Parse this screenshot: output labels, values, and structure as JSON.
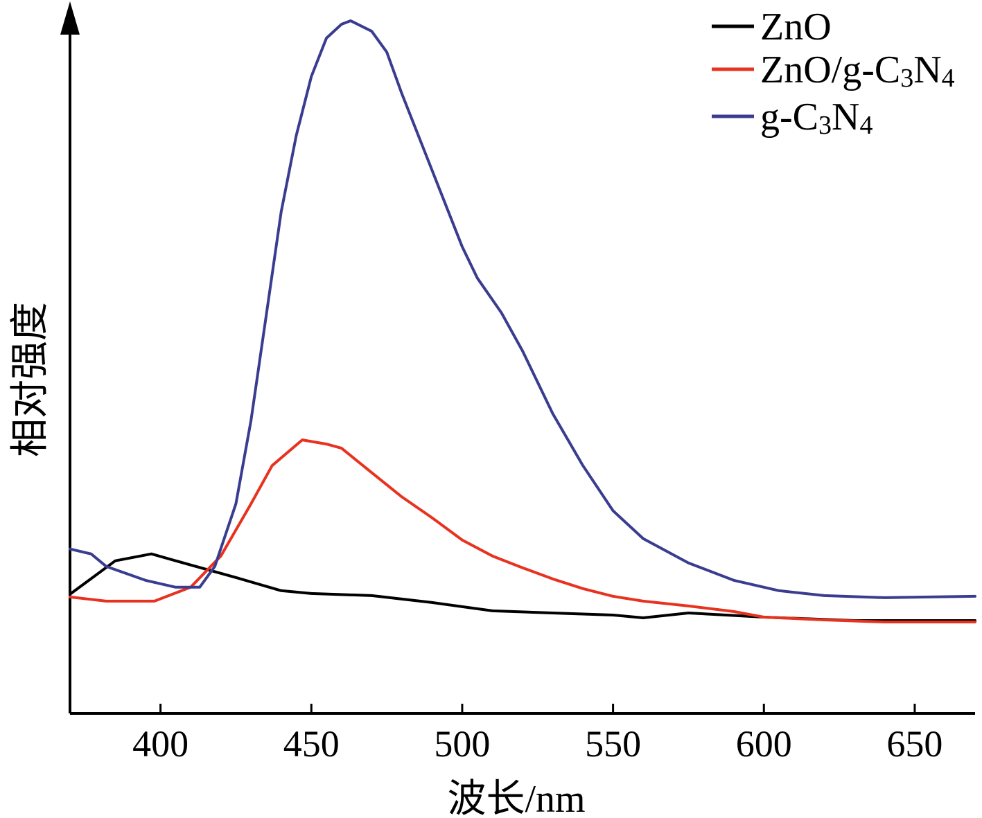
{
  "chart_data": {
    "type": "line",
    "xlabel": "波长/nm",
    "ylabel": "相对强度",
    "xlim": [
      370,
      670
    ],
    "ylim": [
      0,
      100
    ],
    "xticks": [
      400,
      450,
      500,
      550,
      600,
      650
    ],
    "grid": false,
    "legend_position": "top-right",
    "series": [
      {
        "name": "ZnO",
        "color": "#000000",
        "legend_parts": [
          {
            "t": "ZnO"
          }
        ],
        "x": [
          370,
          385,
          397,
          410,
          425,
          440,
          450,
          470,
          490,
          510,
          530,
          550,
          560,
          575,
          600,
          630,
          670
        ],
        "y": [
          17.0,
          21.8,
          22.8,
          21.2,
          19.4,
          17.5,
          17.1,
          16.8,
          15.8,
          14.6,
          14.3,
          14.0,
          13.6,
          14.3,
          13.7,
          13.2,
          13.2
        ]
      },
      {
        "name": "ZnO/g-C3N4",
        "color": "#e8321f",
        "legend_parts": [
          {
            "t": "ZnO/g-C"
          },
          {
            "t": "3",
            "sub": true
          },
          {
            "t": "N"
          },
          {
            "t": "4",
            "sub": true
          }
        ],
        "x": [
          370,
          382,
          398,
          410,
          420,
          430,
          437,
          447,
          455,
          460,
          470,
          480,
          490,
          500,
          510,
          520,
          530,
          540,
          550,
          560,
          575,
          590,
          600,
          620,
          640,
          670
        ],
        "y": [
          16.6,
          16.0,
          16.0,
          18.0,
          22.5,
          30.0,
          35.5,
          39.2,
          38.6,
          38.0,
          34.5,
          31.0,
          28.0,
          24.8,
          22.5,
          20.8,
          19.2,
          17.8,
          16.7,
          16.0,
          15.3,
          14.5,
          13.7,
          13.3,
          13.0,
          13.0
        ]
      },
      {
        "name": "g-C3N4",
        "color": "#3a3d8f",
        "legend_parts": [
          {
            "t": "g-C"
          },
          {
            "t": "3",
            "sub": true
          },
          {
            "t": "N"
          },
          {
            "t": "4",
            "sub": true
          }
        ],
        "x": [
          370,
          377,
          382,
          395,
          405,
          413,
          418,
          425,
          430,
          435,
          440,
          445,
          450,
          455,
          460,
          463,
          470,
          475,
          480,
          490,
          500,
          505,
          513,
          520,
          530,
          540,
          550,
          560,
          575,
          590,
          605,
          620,
          640,
          670
        ],
        "y": [
          23.5,
          22.8,
          21.0,
          19.0,
          18.0,
          18.0,
          21.0,
          30.0,
          42.0,
          57.0,
          72.0,
          83.0,
          91.5,
          97.0,
          99.0,
          99.5,
          98.0,
          95.0,
          89.0,
          78.0,
          67.0,
          62.5,
          57.5,
          52.0,
          43.0,
          35.5,
          29.0,
          25.0,
          21.5,
          19.0,
          17.5,
          16.8,
          16.5,
          16.7
        ]
      }
    ]
  }
}
